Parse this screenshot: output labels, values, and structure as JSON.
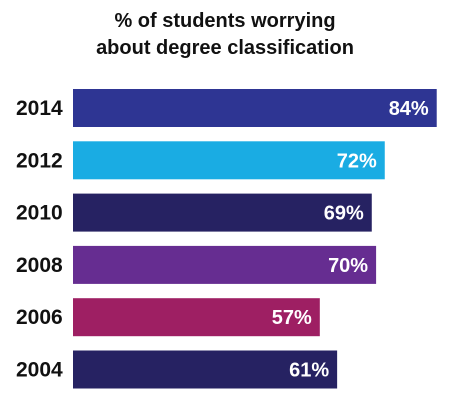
{
  "chart_data": {
    "type": "bar",
    "orientation": "horizontal",
    "title_lines": [
      "% of students worrying",
      "about degree classification"
    ],
    "title": "% of students worrying about degree classification",
    "xlabel": "",
    "ylabel": "",
    "xlim": [
      0,
      100
    ],
    "grid": false,
    "categories": [
      "2014",
      "2012",
      "2010",
      "2008",
      "2006",
      "2004"
    ],
    "values": [
      84,
      72,
      69,
      70,
      57,
      61
    ],
    "value_labels": [
      "84%",
      "72%",
      "69%",
      "70%",
      "57%",
      "61%"
    ],
    "colors": [
      "#2E3593",
      "#1AACE3",
      "#262262",
      "#662D91",
      "#9E1F63",
      "#262262"
    ]
  }
}
